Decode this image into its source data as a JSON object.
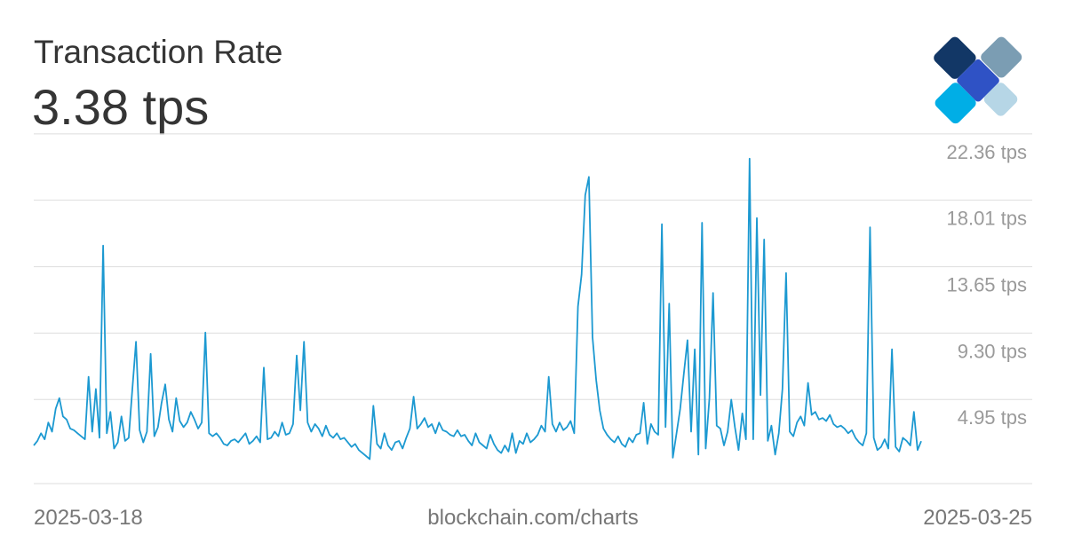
{
  "header": {
    "title": "Transaction Rate",
    "current_value": "3.38 tps"
  },
  "footer": {
    "start_date": "2025-03-18",
    "source": "blockchain.com/charts",
    "end_date": "2025-03-25"
  },
  "logo": {
    "icon": "blockchain-logo-icon",
    "colors": [
      "#7b9db3",
      "#123766",
      "#2f52c5",
      "#b6d6e6",
      "#00aee6"
    ]
  },
  "colors": {
    "line": "#1c99d1",
    "grid": "#dddddd",
    "tick_text": "#9a9a9a"
  },
  "chart_data": {
    "type": "line",
    "title": "Transaction Rate",
    "x_range": [
      "2025-03-18",
      "2025-03-25"
    ],
    "ylim": [
      0.6,
      22.7
    ],
    "y_ticks": [
      4.95,
      9.3,
      13.65,
      18.01,
      22.36
    ],
    "y_tick_labels": [
      "4.95 tps",
      "9.30 tps",
      "13.65 tps",
      "18.01 tps",
      "22.36 tps"
    ],
    "grid": true,
    "series": [
      {
        "values": [
          3.1,
          3.4,
          3.9,
          3.5,
          4.6,
          4.0,
          5.5,
          6.2,
          5.0,
          4.8,
          4.2,
          4.1,
          3.9,
          3.7,
          3.5,
          7.6,
          4.0,
          6.8,
          3.6,
          16.2,
          3.9,
          5.3,
          2.9,
          3.3,
          5.0,
          3.4,
          3.6,
          6.8,
          9.9,
          4.1,
          3.3,
          4.0,
          9.1,
          3.7,
          4.3,
          5.9,
          7.1,
          4.8,
          4.0,
          6.2,
          4.7,
          4.3,
          4.6,
          5.3,
          4.8,
          4.2,
          4.6,
          10.5,
          3.9,
          3.7,
          3.9,
          3.6,
          3.2,
          3.1,
          3.4,
          3.5,
          3.3,
          3.6,
          3.9,
          3.2,
          3.4,
          3.7,
          3.3,
          8.2,
          3.5,
          3.6,
          4.0,
          3.7,
          4.6,
          3.8,
          3.9,
          4.5,
          9.0,
          5.4,
          9.9,
          4.6,
          4.0,
          4.5,
          4.2,
          3.7,
          4.4,
          3.8,
          3.6,
          3.9,
          3.5,
          3.6,
          3.3,
          3.0,
          3.2,
          2.8,
          2.6,
          2.4,
          2.2,
          5.7,
          3.2,
          2.9,
          3.9,
          3.1,
          2.8,
          3.3,
          3.4,
          2.9,
          3.6,
          4.2,
          6.3,
          4.2,
          4.5,
          4.9,
          4.3,
          4.5,
          3.9,
          4.6,
          4.1,
          4.0,
          3.8,
          3.7,
          4.1,
          3.7,
          3.8,
          3.4,
          3.1,
          3.9,
          3.3,
          3.1,
          2.9,
          3.8,
          3.2,
          2.8,
          2.6,
          3.1,
          2.7,
          3.9,
          2.6,
          3.4,
          3.2,
          3.9,
          3.3,
          3.5,
          3.8,
          4.4,
          4.0,
          7.6,
          4.5,
          4.0,
          4.6,
          4.1,
          4.3,
          4.7,
          3.9,
          12.2,
          14.3,
          19.5,
          20.7,
          10.2,
          7.4,
          5.4,
          4.2,
          3.8,
          3.5,
          3.3,
          3.7,
          3.2,
          3.0,
          3.6,
          3.3,
          3.8,
          3.9,
          5.9,
          3.2,
          4.5,
          4.0,
          3.8,
          17.6,
          4.3,
          12.4,
          2.3,
          3.9,
          5.5,
          7.8,
          10.0,
          4.0,
          9.4,
          2.5,
          17.7,
          2.9,
          6.2,
          13.1,
          4.4,
          4.2,
          3.1,
          4.0,
          6.1,
          4.3,
          2.8,
          5.2,
          3.5,
          21.9,
          3.5,
          18.0,
          6.4,
          16.6,
          3.4,
          4.4,
          2.5,
          3.9,
          6.8,
          14.4,
          4.0,
          3.7,
          4.6,
          5.0,
          4.4,
          7.2,
          5.1,
          5.3,
          4.8,
          4.9,
          4.7,
          5.1,
          4.5,
          4.3,
          4.4,
          4.2,
          3.9,
          4.1,
          3.6,
          3.3,
          3.1,
          3.9,
          17.4,
          3.6,
          2.8,
          3.0,
          3.5,
          2.9,
          9.4,
          3.0,
          2.7,
          3.6,
          3.4,
          3.1,
          5.3,
          2.8,
          3.38
        ]
      }
    ]
  }
}
